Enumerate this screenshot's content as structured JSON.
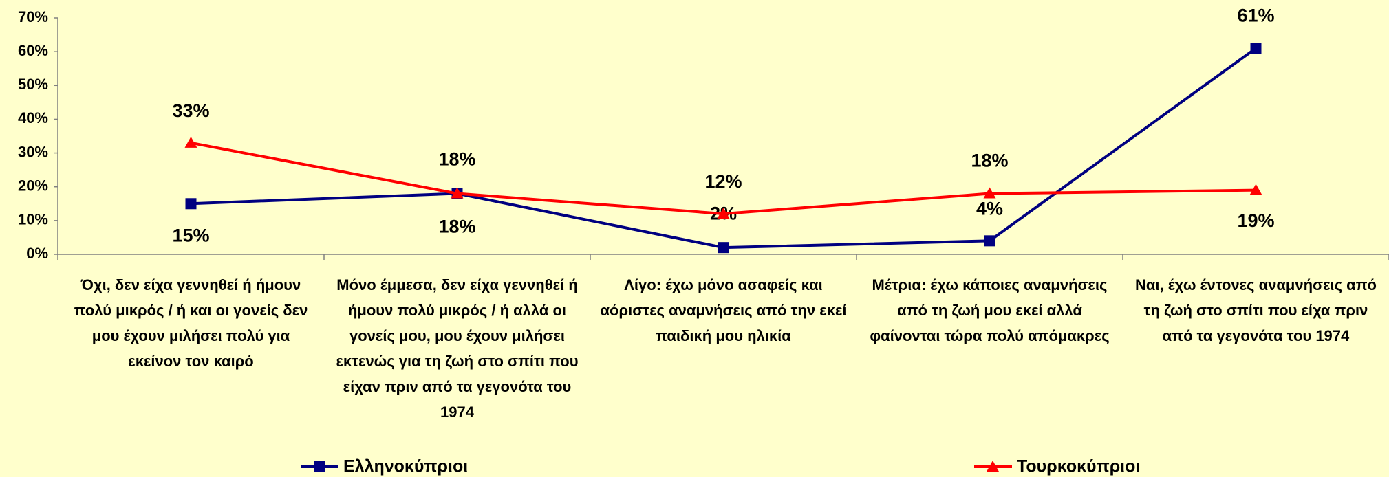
{
  "chart_data": {
    "type": "line",
    "categories": [
      "Όχι, δεν είχα γεννηθεί ή ήμουν πολύ μικρός / ή και οι γονείς δεν μου έχουν μιλήσει πολύ για εκείνον τον καιρό",
      "Μόνο έμμεσα, δεν είχα γεννηθεί ή ήμουν πολύ μικρός / ή αλλά οι γονείς μου, μου έχουν μιλήσει εκτενώς για τη ζωή στο σπίτι που είχαν πριν από τα γεγονότα του 1974",
      "Λίγο: έχω μόνο ασαφείς και αόριστες αναμνήσεις από την εκεί παιδική μου ηλικία",
      "Μέτρια: έχω κάποιες αναμνήσεις από τη ζωή μου εκεί αλλά φαίνονται τώρα πολύ απόμακρες",
      "Ναι, έχω έντονες αναμνήσεις από τη ζωή στο σπίτι που είχα πριν από τα γεγονότα του 1974"
    ],
    "series": [
      {
        "name": "Ελληνοκύπριοι",
        "color": "#000080",
        "marker": "square",
        "values": [
          15,
          18,
          2,
          4,
          61
        ],
        "value_labels": [
          "15%",
          "18%",
          "2%",
          "4%",
          "61%"
        ]
      },
      {
        "name": "Τουρκοκύπριοι",
        "color": "#ff0000",
        "marker": "triangle",
        "values": [
          33,
          18,
          12,
          18,
          19
        ],
        "value_labels": [
          "33%",
          "18%",
          "12%",
          "18%",
          "19%"
        ]
      }
    ],
    "ylim": [
      0,
      70
    ],
    "yticks": [
      {
        "value": 0,
        "label": "0%"
      },
      {
        "value": 10,
        "label": "10%"
      },
      {
        "value": 20,
        "label": "20%"
      },
      {
        "value": 30,
        "label": "30%"
      },
      {
        "value": 40,
        "label": "40%"
      },
      {
        "value": 50,
        "label": "50%"
      },
      {
        "value": 60,
        "label": "60%"
      },
      {
        "value": 70,
        "label": "70%"
      }
    ]
  }
}
